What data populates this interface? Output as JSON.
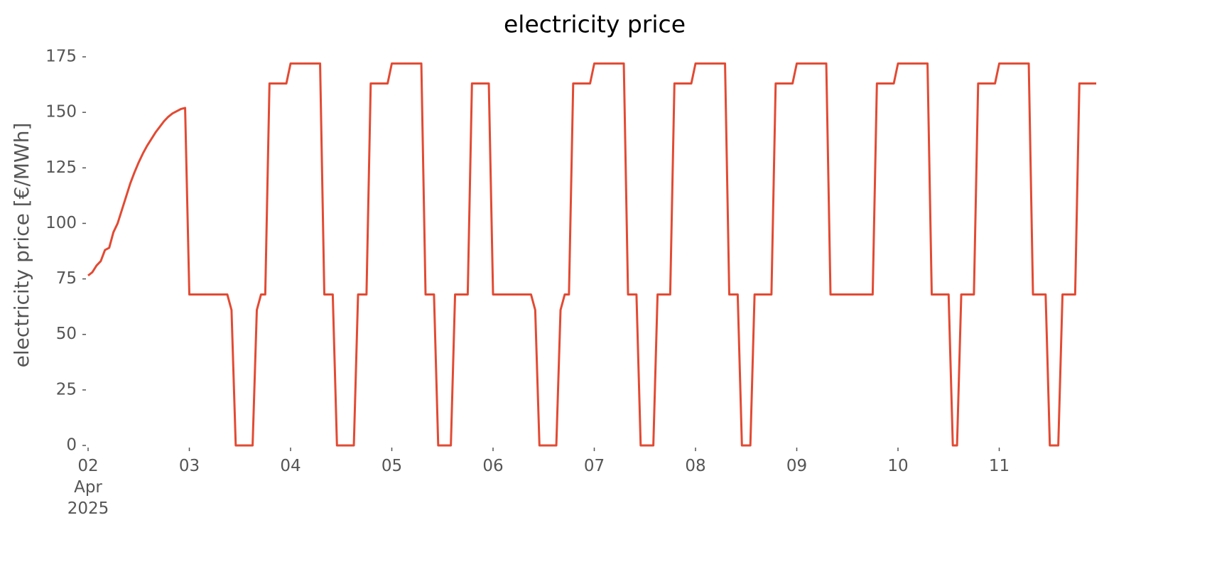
{
  "chart_data": {
    "type": "line",
    "title": "electricity price",
    "y_label": "electricity price [€/MWh]",
    "x": [
      0,
      1,
      2,
      3,
      4,
      5,
      6,
      7,
      8,
      9,
      10,
      11,
      12,
      13,
      14,
      15,
      16,
      17,
      18,
      19,
      20,
      21,
      22,
      23,
      24,
      33,
      34,
      35,
      39,
      40,
      41,
      42,
      43,
      47,
      48,
      55,
      56,
      58,
      59,
      63,
      64,
      66,
      67,
      71,
      72,
      79,
      80,
      82,
      83,
      86,
      87,
      90,
      91,
      95,
      96,
      105,
      106,
      107,
      111,
      112,
      113,
      114,
      115,
      119,
      120,
      127,
      128,
      130,
      131,
      134,
      135,
      138,
      139,
      143,
      144,
      151,
      152,
      154,
      155,
      157,
      158,
      162,
      163,
      167,
      168,
      175,
      176,
      186,
      187,
      191,
      192,
      199,
      200,
      204,
      205,
      206,
      207,
      210,
      211,
      215,
      216,
      223,
      224,
      227,
      228,
      230,
      231,
      234,
      235,
      239
    ],
    "series": [
      {
        "name": "electricity price",
        "color": "#e24a33",
        "values": [
          76.5,
          78,
          81,
          83,
          88,
          89,
          96,
          100,
          106,
          112,
          118,
          123,
          127.5,
          131.5,
          135,
          138,
          141,
          143.5,
          146,
          148,
          149.5,
          150.5,
          151.5,
          152,
          68,
          68,
          61,
          0,
          0,
          61,
          68,
          68,
          163,
          163,
          172,
          172,
          68,
          68,
          0,
          0,
          68,
          68,
          163,
          163,
          172,
          172,
          68,
          68,
          0,
          0,
          68,
          68,
          163,
          163,
          68,
          68,
          61,
          0,
          0,
          61,
          68,
          68,
          163,
          163,
          172,
          172,
          68,
          68,
          0,
          0,
          68,
          68,
          163,
          163,
          172,
          172,
          68,
          68,
          0,
          0,
          68,
          68,
          163,
          163,
          172,
          172,
          68,
          68,
          163,
          163,
          172,
          172,
          68,
          68,
          0,
          0,
          68,
          68,
          163,
          163,
          172,
          172,
          68,
          68,
          0,
          0,
          68,
          68,
          163,
          163
        ]
      }
    ],
    "xlim": [
      0,
      240
    ],
    "xticks": [
      {
        "value": 0,
        "label": "02\nApr\n2025"
      },
      {
        "value": 24,
        "label": "03"
      },
      {
        "value": 48,
        "label": "04"
      },
      {
        "value": 72,
        "label": "05"
      },
      {
        "value": 96,
        "label": "06"
      },
      {
        "value": 120,
        "label": "07"
      },
      {
        "value": 144,
        "label": "08"
      },
      {
        "value": 168,
        "label": "09"
      },
      {
        "value": 192,
        "label": "10"
      },
      {
        "value": 216,
        "label": "11"
      }
    ],
    "ylim": [
      0,
      175
    ],
    "yticks": [
      0,
      25,
      50,
      75,
      100,
      125,
      150,
      175
    ],
    "grid": false
  }
}
